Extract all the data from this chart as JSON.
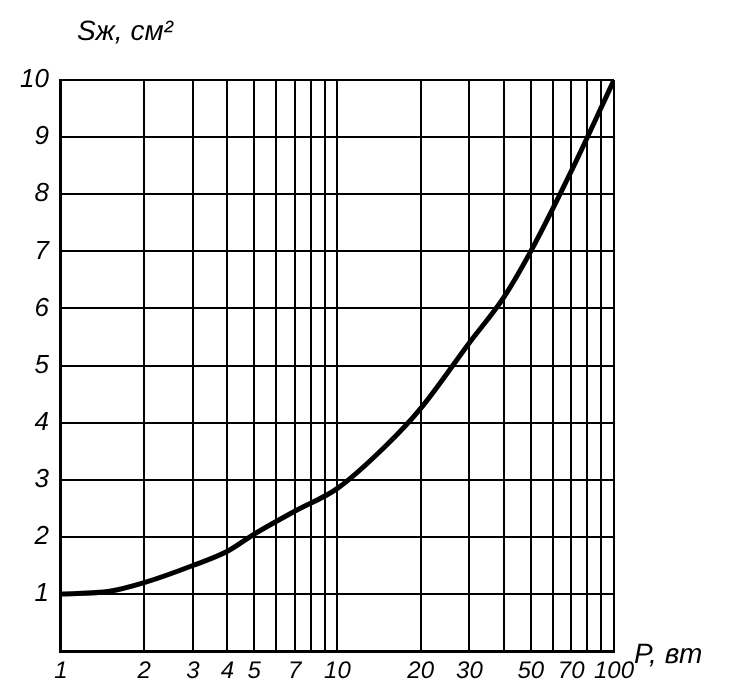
{
  "chart_data": {
    "type": "line",
    "xlabel": "P, вт",
    "ylabel": "Sж, см²",
    "log": "x",
    "grid": true,
    "marker": "none",
    "line_style": "solid",
    "legend": false,
    "xlim": [
      1,
      100
    ],
    "ylim": [
      0,
      10
    ],
    "xticks": [
      1,
      2,
      3,
      4,
      5,
      {
        "value": 6,
        "label": null
      },
      7,
      {
        "value": 8,
        "label": null
      },
      {
        "value": 9,
        "label": null
      },
      10,
      20,
      30,
      {
        "value": 40,
        "label": null
      },
      50,
      {
        "value": 60,
        "label": null
      },
      70,
      {
        "value": 80,
        "label": null
      },
      {
        "value": 90,
        "label": null
      },
      100
    ],
    "yticks": [
      {
        "value": 0,
        "label": null
      },
      1,
      2,
      3,
      4,
      5,
      6,
      7,
      8,
      9,
      10
    ],
    "x": [
      1,
      1.5,
      2,
      3,
      4,
      5,
      7,
      10,
      15,
      20,
      30,
      40,
      50,
      70,
      100
    ],
    "series": [
      {
        "color": "#000000",
        "values": [
          1,
          1.05,
          1.2,
          1.5,
          1.75,
          2.05,
          2.45,
          2.85,
          3.6,
          4.25,
          5.4,
          6.2,
          7.0,
          8.4,
          10
        ]
      }
    ]
  }
}
